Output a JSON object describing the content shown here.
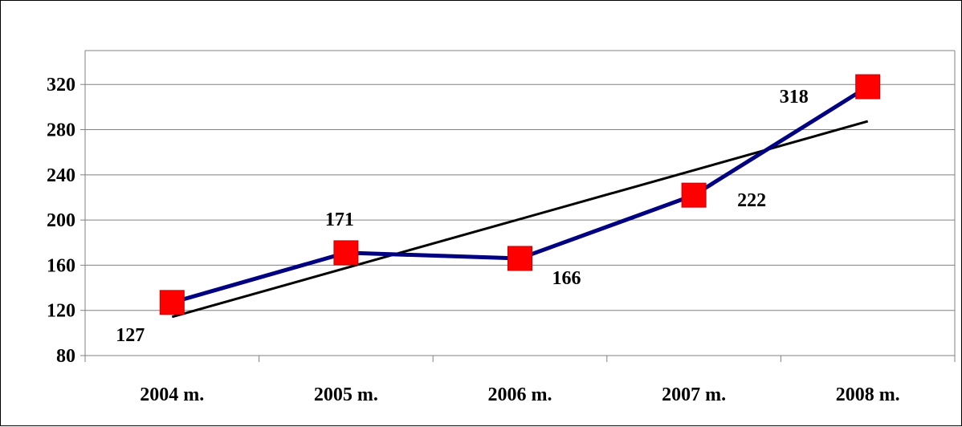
{
  "chart_data": {
    "type": "line",
    "categories": [
      "2004 m.",
      "2005 m.",
      "2006 m.",
      "2007 m.",
      "2008 m."
    ],
    "series": [
      {
        "values": [
          127,
          171,
          166,
          222,
          318
        ],
        "color": "#000080",
        "marker": "square",
        "marker_color": "#ff0000"
      }
    ],
    "data_labels": [
      "127",
      "171",
      "166",
      "222",
      "318"
    ],
    "trendline": {
      "type": "linear",
      "color": "#000000"
    },
    "ylim": [
      80,
      350
    ],
    "yticks": [
      80,
      120,
      160,
      200,
      240,
      280,
      320
    ],
    "ytick_labels": [
      "80",
      "120",
      "160",
      "200",
      "240",
      "280",
      "320"
    ],
    "grid": "horizontal",
    "legend": "none",
    "title": "",
    "xlabel": "",
    "ylabel": ""
  }
}
